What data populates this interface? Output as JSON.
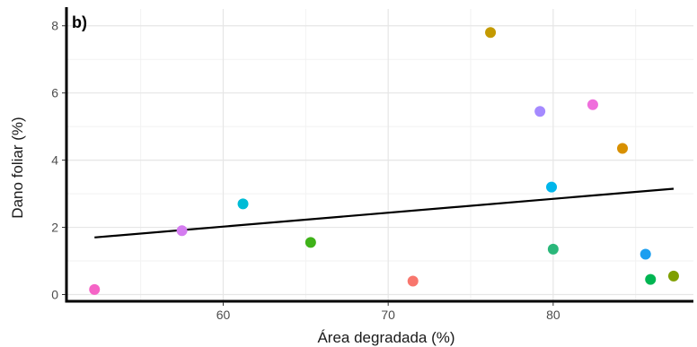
{
  "chart_data": {
    "type": "scatter",
    "title": "",
    "panel_label": "b)",
    "xlabel": "Área degradada (%)",
    "ylabel": "Dano foliar (%)",
    "xlim": [
      50.5,
      88.5
    ],
    "ylim": [
      -0.2,
      8.5
    ],
    "xticks": [
      60,
      70,
      80
    ],
    "yticks": [
      0,
      2,
      4,
      6,
      8
    ],
    "grid": true,
    "points": [
      {
        "x": 52.2,
        "y": 0.15,
        "color": "#f564c6"
      },
      {
        "x": 57.5,
        "y": 1.9,
        "color": "#d47cf0"
      },
      {
        "x": 61.2,
        "y": 2.7,
        "color": "#00bcd6"
      },
      {
        "x": 65.3,
        "y": 1.55,
        "color": "#3fb219"
      },
      {
        "x": 71.5,
        "y": 0.4,
        "color": "#f8766d"
      },
      {
        "x": 76.2,
        "y": 7.8,
        "color": "#c49a00"
      },
      {
        "x": 79.2,
        "y": 5.45,
        "color": "#a58aff"
      },
      {
        "x": 79.9,
        "y": 3.2,
        "color": "#00b6eb"
      },
      {
        "x": 80.0,
        "y": 1.35,
        "color": "#2ab77a"
      },
      {
        "x": 82.4,
        "y": 5.65,
        "color": "#ef6edc"
      },
      {
        "x": 84.2,
        "y": 4.35,
        "color": "#d89000"
      },
      {
        "x": 85.6,
        "y": 1.2,
        "color": "#1b9ff0"
      },
      {
        "x": 85.9,
        "y": 0.45,
        "color": "#00b552"
      },
      {
        "x": 87.3,
        "y": 0.55,
        "color": "#7f9f00"
      }
    ],
    "trend_line": {
      "x": [
        52.2,
        87.3
      ],
      "y": [
        1.7,
        3.15
      ],
      "color": "#000000"
    }
  }
}
